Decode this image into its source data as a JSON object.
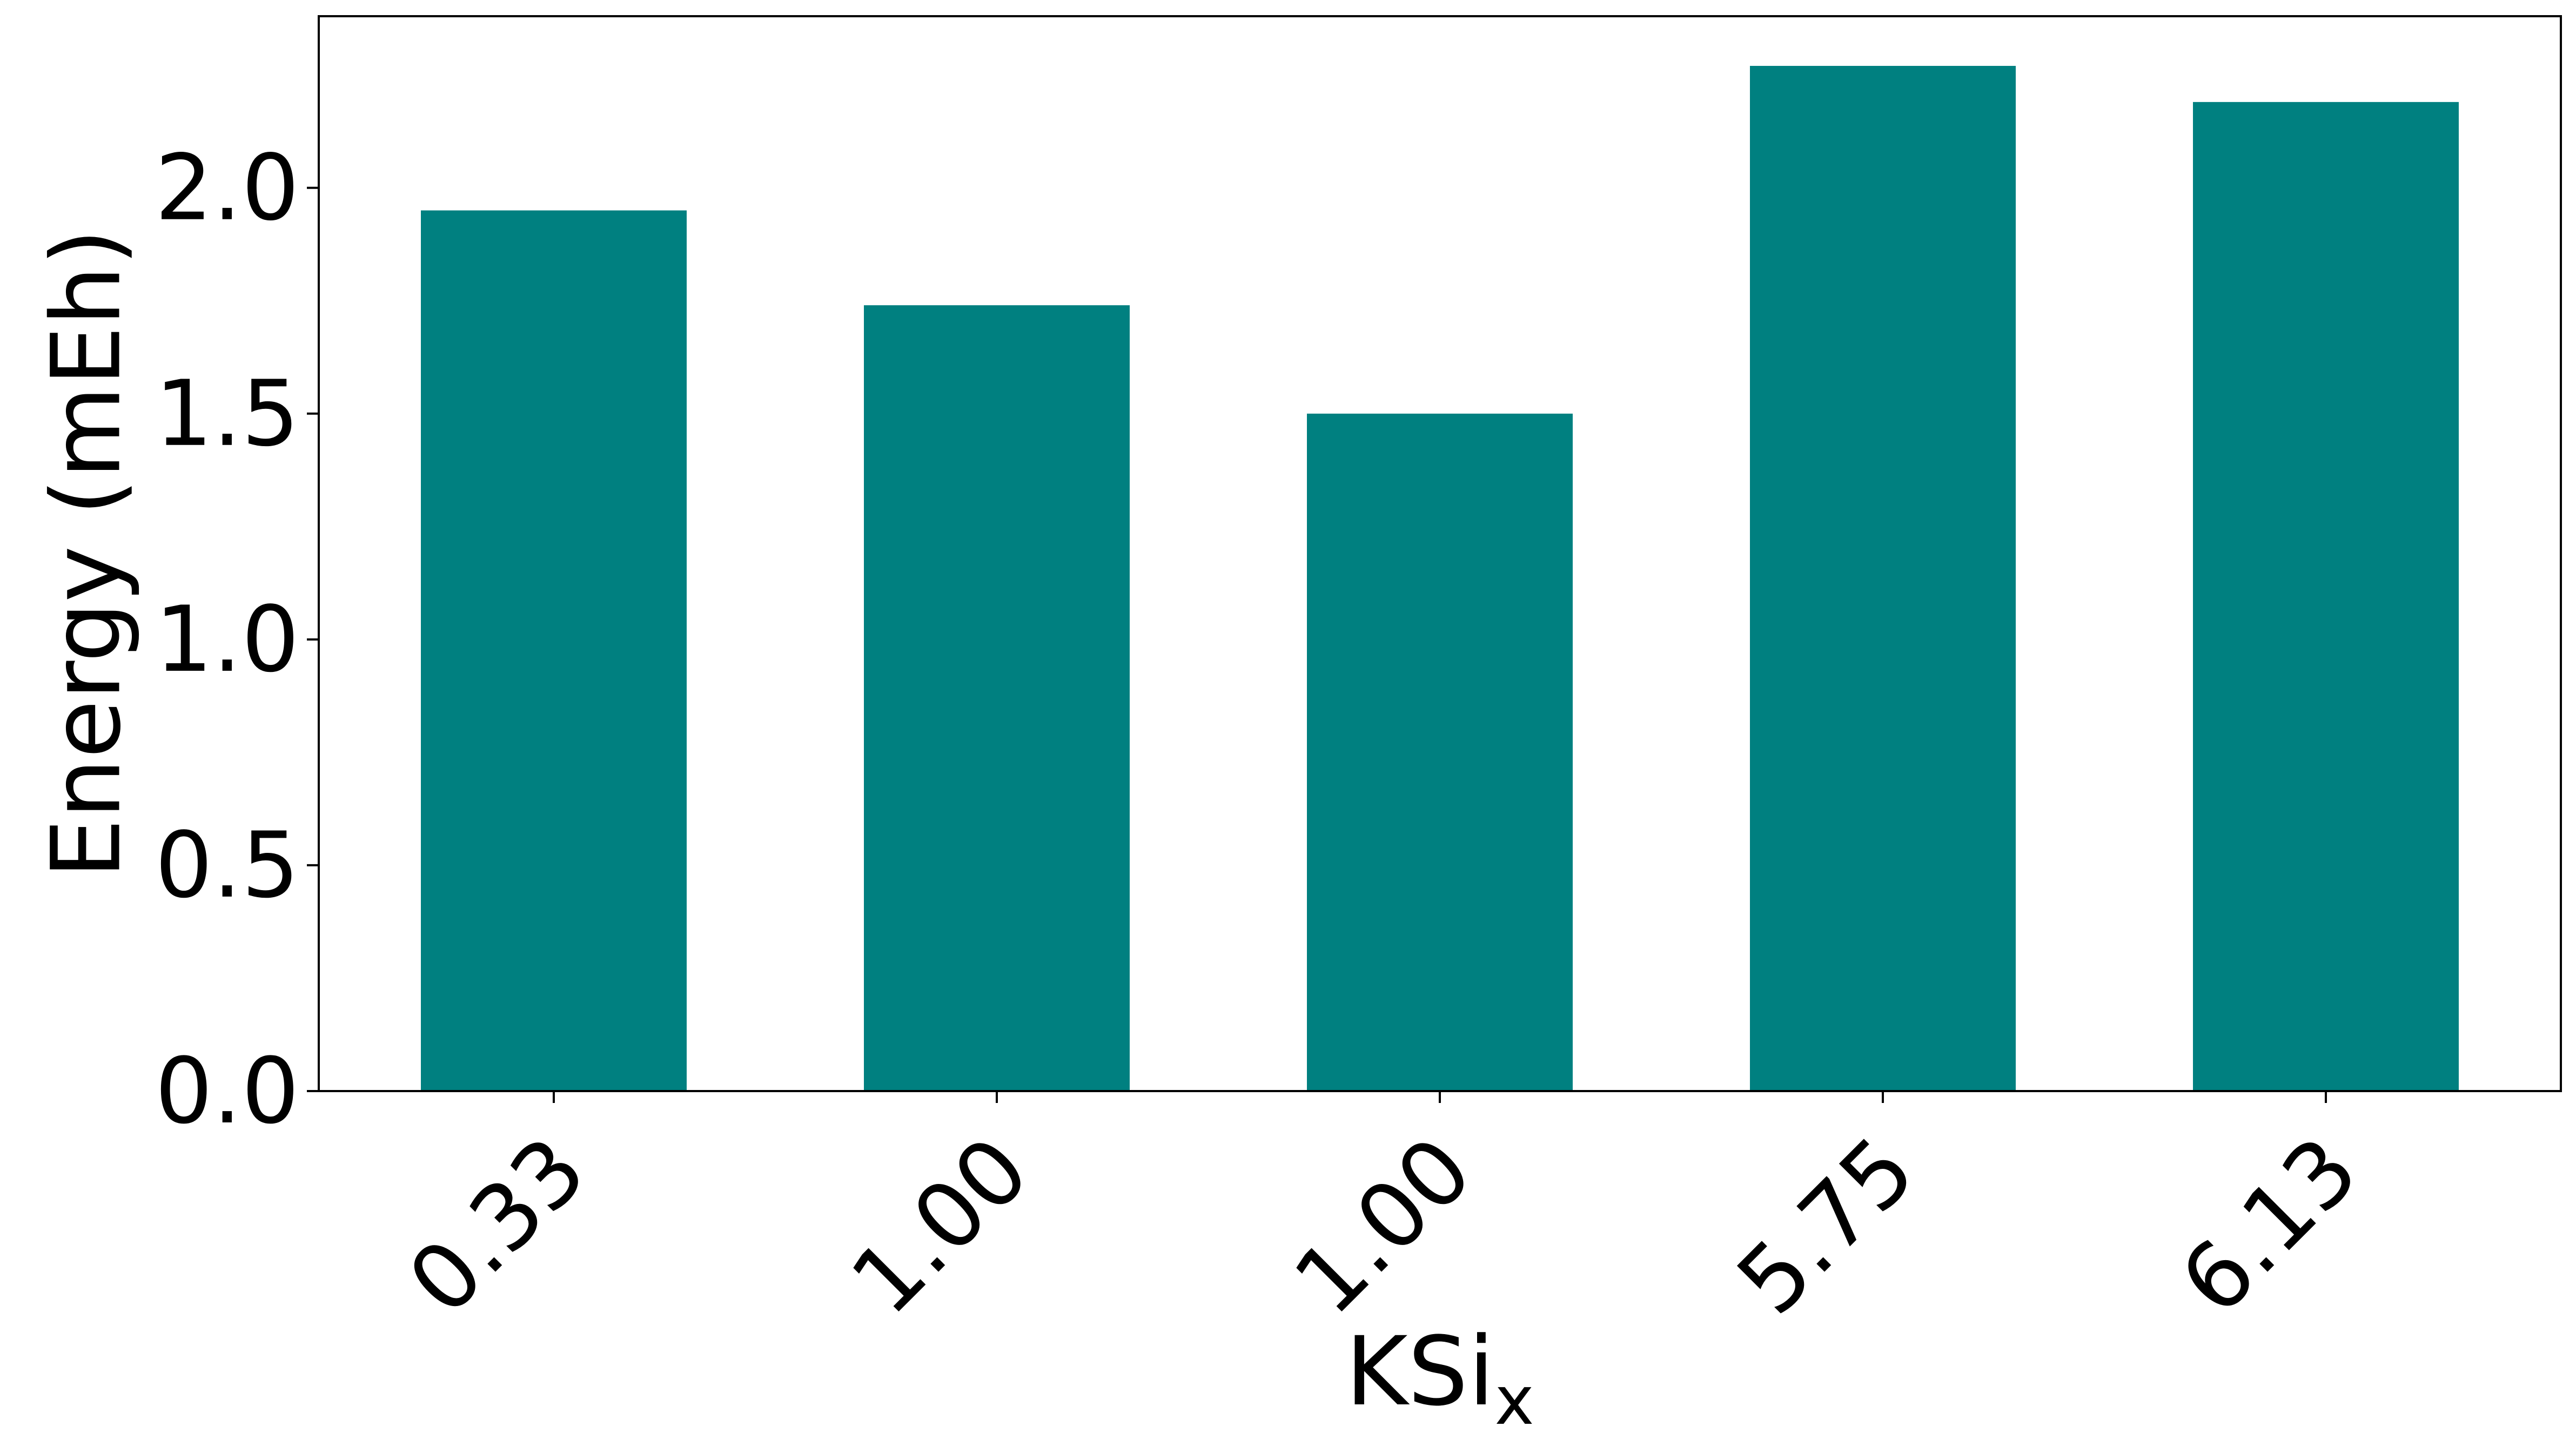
{
  "chart_data": {
    "type": "bar",
    "categories": [
      "0.33",
      "1.00",
      "1.00",
      "5.75",
      "6.13"
    ],
    "values": [
      1.95,
      1.74,
      1.5,
      2.27,
      2.19
    ],
    "title": "",
    "xlabel": {
      "text": "KSi",
      "subscript": "x"
    },
    "ylabel": "Energy (mEh)",
    "ylim": [
      0,
      2.38
    ],
    "yticks": [
      "0.0",
      "0.5",
      "1.0",
      "1.5",
      "2.0"
    ],
    "grid": false,
    "legend": false,
    "bar_color": "#008080"
  }
}
